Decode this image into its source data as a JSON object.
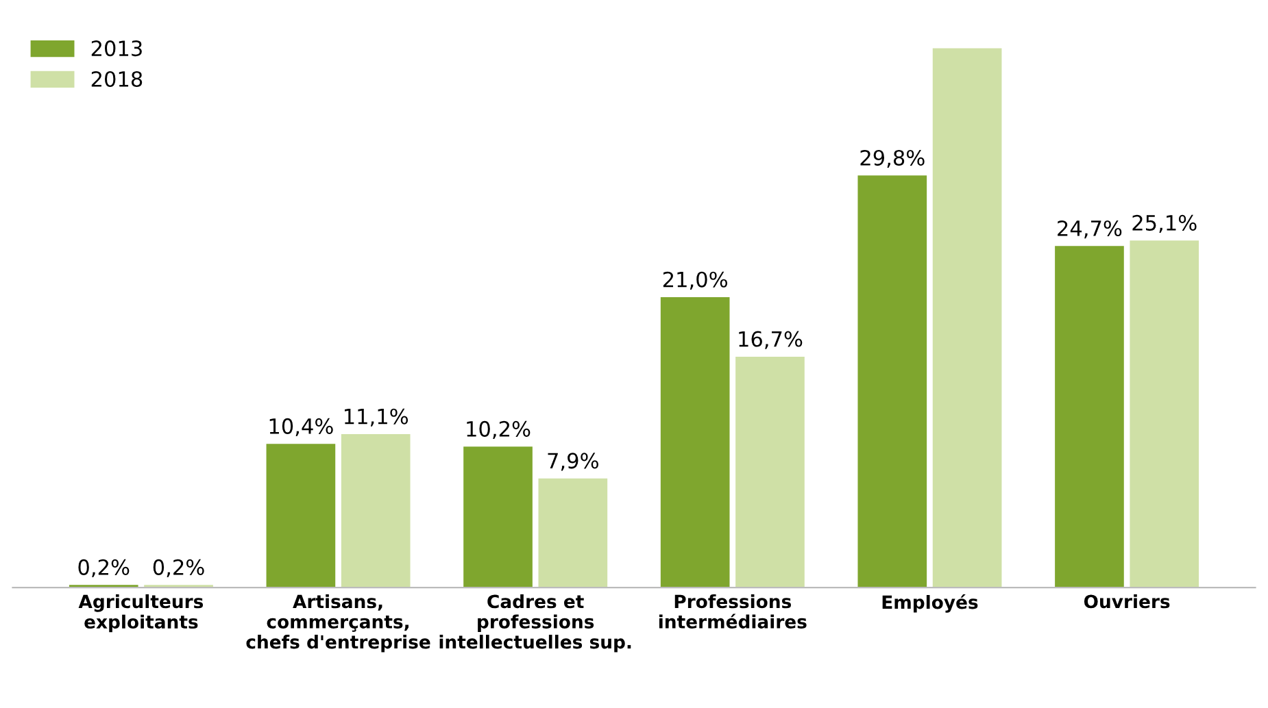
{
  "chart_data": {
    "type": "bar",
    "categories": [
      "Agriculteurs\nexploitants",
      "Artisans,\ncommerçants,\nchefs d'entreprise",
      "Cadres et\nprofessions\nintellectuelles sup.",
      "Professions\nintermédiaires",
      "Employés",
      "Ouvriers"
    ],
    "series": [
      {
        "name": "2013",
        "color": "#7fa62e",
        "values": [
          0.2,
          10.4,
          10.2,
          21.0,
          29.8,
          24.7
        ],
        "value_labels": [
          "0,2%",
          "10,4%",
          "10,2%",
          "21,0%",
          "29,8%",
          "24,7%"
        ]
      },
      {
        "name": "2018",
        "color": "#cfe0a6",
        "values": [
          0.2,
          11.1,
          7.9,
          16.7,
          39.0,
          25.1
        ],
        "value_labels": [
          "0,2%",
          "11,1%",
          "7,9%",
          "16,7%",
          null,
          "25,1%"
        ]
      }
    ],
    "legend": "top left",
    "grid": false
  }
}
